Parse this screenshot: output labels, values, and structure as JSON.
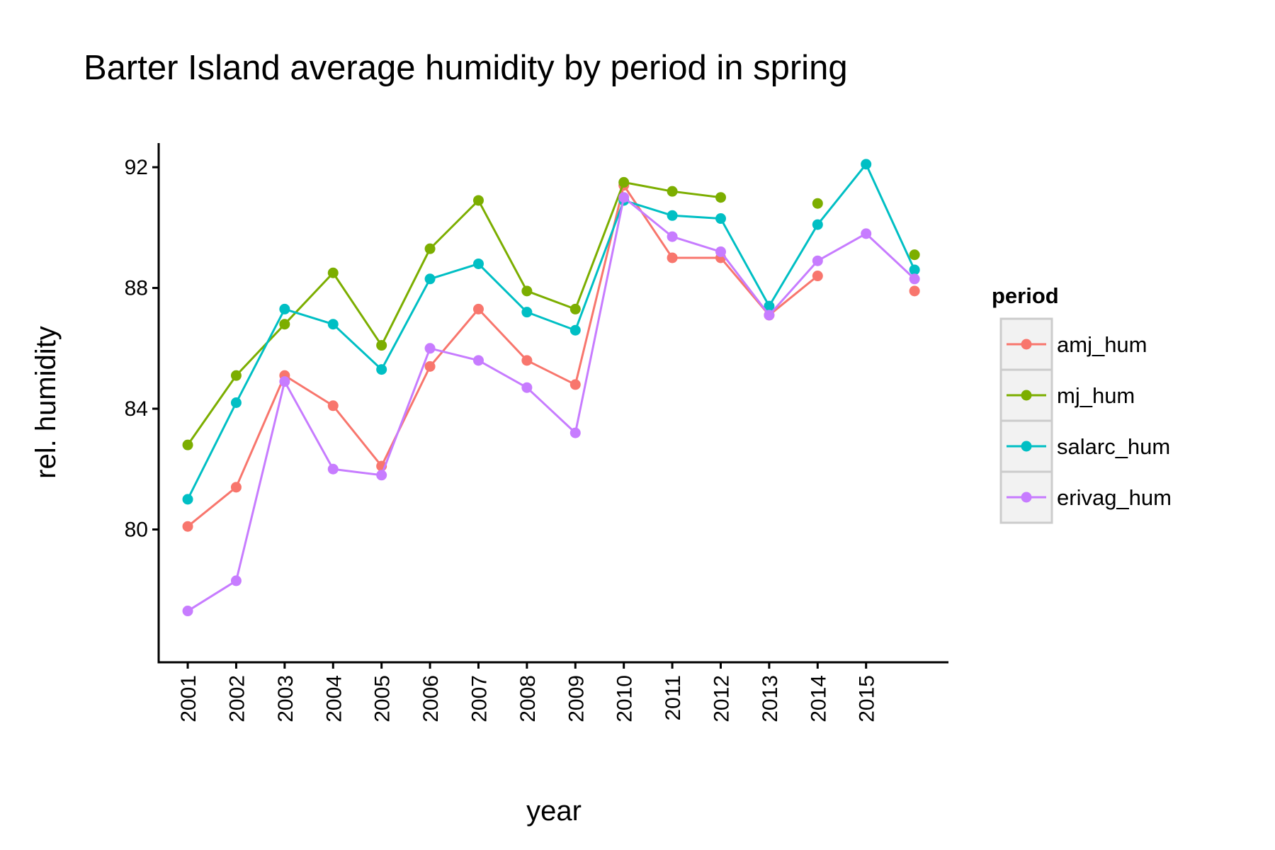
{
  "chart_data": {
    "type": "line",
    "title": "Barter Island average humidity by period in spring",
    "xlabel": "year",
    "ylabel": "rel. humidity",
    "x": [
      2001,
      2002,
      2003,
      2004,
      2005,
      2006,
      2007,
      2008,
      2009,
      2010,
      2011,
      2012,
      2013,
      2014,
      2015,
      2016
    ],
    "x_tick_labels": [
      "2001",
      "2002",
      "2003",
      "2004",
      "2005",
      "2006",
      "2007",
      "2008",
      "2009",
      "2010",
      "2011",
      "2012",
      "2013",
      "2014",
      "2015"
    ],
    "y_ticks": [
      80,
      84,
      88,
      92
    ],
    "ylim": [
      75.6,
      92.8
    ],
    "xlim": [
      2000.4,
      2016.7
    ],
    "grid": false,
    "legend": {
      "title": "period",
      "position": "right"
    },
    "series": [
      {
        "name": "amj_hum",
        "color": "#F8766D",
        "values": [
          80.1,
          81.4,
          85.1,
          84.1,
          82.1,
          85.4,
          87.3,
          85.6,
          84.8,
          91.4,
          89.0,
          89.0,
          87.1,
          88.4,
          null,
          87.9
        ]
      },
      {
        "name": "mj_hum",
        "color": "#7CAE00",
        "values": [
          82.8,
          85.1,
          86.8,
          88.5,
          86.1,
          89.3,
          90.9,
          87.9,
          87.3,
          91.5,
          91.2,
          91.0,
          null,
          90.8,
          null,
          89.1
        ]
      },
      {
        "name": "salarc_hum",
        "color": "#00BFC4",
        "values": [
          81.0,
          84.2,
          87.3,
          86.8,
          85.3,
          88.3,
          88.8,
          87.2,
          86.6,
          90.9,
          90.4,
          90.3,
          87.4,
          90.1,
          92.1,
          88.6
        ]
      },
      {
        "name": "erivag_hum",
        "color": "#C77CFF",
        "values": [
          77.3,
          78.3,
          84.9,
          82.0,
          81.8,
          86.0,
          85.6,
          84.7,
          83.2,
          91.0,
          89.7,
          89.2,
          87.1,
          88.9,
          89.8,
          88.3
        ]
      }
    ]
  }
}
